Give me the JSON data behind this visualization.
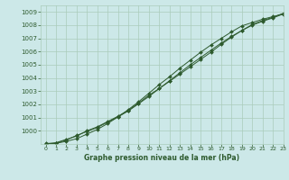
{
  "title": "Graphe pression niveau de la mer (hPa)",
  "bg_color": "#cce8e8",
  "grid_color": "#aaccbb",
  "line_color": "#2d5a2d",
  "xlim": [
    -0.5,
    23
  ],
  "ylim": [
    999.0,
    1009.5
  ],
  "yticks": [
    1000,
    1001,
    1002,
    1003,
    1004,
    1005,
    1006,
    1007,
    1008,
    1009
  ],
  "xticks": [
    0,
    1,
    2,
    3,
    4,
    5,
    6,
    7,
    8,
    9,
    10,
    11,
    12,
    13,
    14,
    15,
    16,
    17,
    18,
    19,
    20,
    21,
    22,
    23
  ],
  "line1": [
    999.0,
    999.1,
    999.35,
    999.6,
    1000.0,
    1000.3,
    1000.7,
    1001.1,
    1001.55,
    1002.1,
    1002.7,
    1003.2,
    1003.75,
    1004.3,
    1004.85,
    1005.4,
    1005.95,
    1006.55,
    1007.1,
    1007.6,
    1008.0,
    1008.3,
    1008.55,
    1008.85
  ],
  "line2": [
    999.05,
    999.05,
    999.3,
    999.65,
    999.95,
    1000.25,
    1000.65,
    1001.05,
    1001.5,
    1002.05,
    1002.6,
    1003.2,
    1003.8,
    1004.4,
    1005.0,
    1005.55,
    1006.1,
    1006.65,
    1007.15,
    1007.6,
    1008.05,
    1008.35,
    1008.6,
    1008.9
  ],
  "line3": [
    999.0,
    999.05,
    999.2,
    999.4,
    999.75,
    1000.1,
    1000.55,
    1001.05,
    1001.6,
    1002.2,
    1002.85,
    1003.5,
    1004.1,
    1004.75,
    1005.35,
    1005.95,
    1006.5,
    1007.0,
    1007.5,
    1007.95,
    1008.2,
    1008.45,
    1008.65,
    1008.85
  ]
}
